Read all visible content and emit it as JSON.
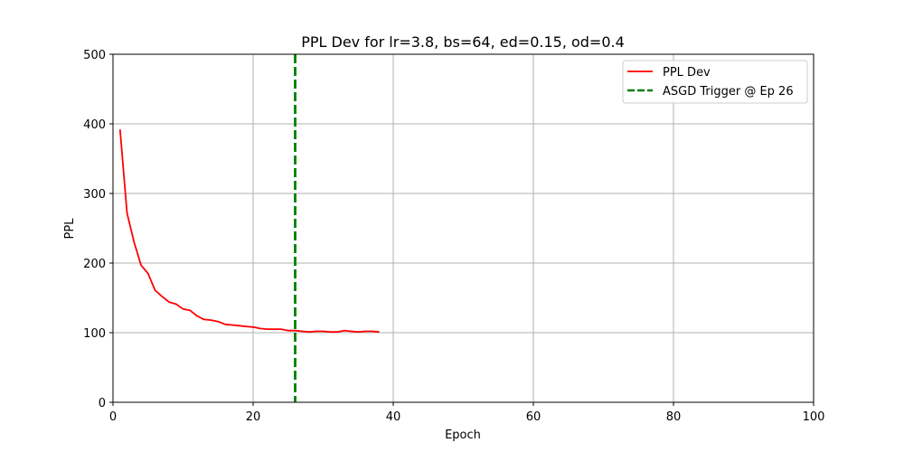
{
  "chart_data": {
    "type": "line",
    "title": "PPL Dev for lr=3.8, bs=64, ed=0.15, od=0.4",
    "xlabel": "Epoch",
    "ylabel": "PPL",
    "xlim": [
      0,
      100
    ],
    "ylim": [
      0,
      500
    ],
    "xticks": [
      0,
      20,
      40,
      60,
      80,
      100
    ],
    "yticks": [
      0,
      100,
      200,
      300,
      400,
      500
    ],
    "grid": true,
    "legend_position": "top-right",
    "series": [
      {
        "name": "PPL Dev",
        "color": "#ff0000",
        "style": "solid",
        "x": [
          1,
          2,
          3,
          4,
          5,
          6,
          7,
          8,
          9,
          10,
          11,
          12,
          13,
          14,
          15,
          16,
          17,
          18,
          19,
          20,
          21,
          22,
          23,
          24,
          25,
          26,
          27,
          28,
          29,
          30,
          31,
          32,
          33,
          34,
          35,
          36,
          37,
          38
        ],
        "values": [
          392,
          272,
          230,
          197,
          185,
          161,
          152,
          144,
          141,
          134,
          132,
          124,
          119,
          118,
          116,
          112,
          111,
          110,
          109,
          108,
          106,
          105,
          105,
          105,
          103,
          103,
          102,
          101,
          102,
          102,
          101,
          101,
          103,
          102,
          101,
          102,
          102,
          101
        ]
      }
    ],
    "vlines": [
      {
        "name": "ASGD Trigger @ Ep 26",
        "x": 26,
        "color": "#008000",
        "style": "dashed"
      }
    ]
  }
}
